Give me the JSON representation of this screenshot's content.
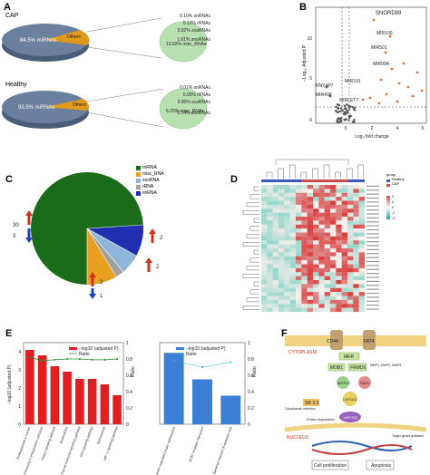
{
  "panels": {
    "A": {
      "label": "A",
      "cap": {
        "title": "CAP",
        "main_pct": "84.5% miRNAs",
        "others_label": "Others",
        "inner_pct": "13.62% misc_RNAs",
        "callouts": [
          "0.10% snRNAs",
          "0.12% rRNAs",
          "0.02% scaRNAs",
          "1.61% snoRNAs"
        ]
      },
      "healthy": {
        "title": "Healthy",
        "main_pct": "93.5% miRNAs",
        "others_label": "Others",
        "inner_pct": "6.25% misc_RNAs",
        "callouts": [
          "0.01% snRNAs",
          "0.05% rRNAs",
          "0.00% scaRNAs",
          "0.14% snoRNAs"
        ]
      }
    },
    "B": {
      "label": "B",
      "ylabel": "−Log₁₀ Adjusted P",
      "xlabel": "Log₂ fold change",
      "yticks": [
        "10",
        "5",
        "0"
      ],
      "xticks": [
        "0",
        "2",
        "4",
        "6"
      ],
      "genes": [
        "SNORD89",
        "MIR100",
        "MIR501",
        "MIR99A",
        "RNY4P7",
        "MIR409",
        "MIR191",
        "MIRLET7"
      ]
    },
    "C": {
      "label": "C",
      "legend": [
        {
          "name": "miRNA",
          "color": "#1a6b1a"
        },
        {
          "name": "misc_RNA",
          "color": "#e8a020"
        },
        {
          "name": "snoRNA",
          "color": "#8fb6d8"
        },
        {
          "name": "rRNA",
          "color": "#a0a0a0"
        },
        {
          "name": "snRNA",
          "color": "#1f2fb0"
        }
      ],
      "counts": {
        "up_main": "30",
        "down_main": "3",
        "up_r1": "2",
        "up_r2": "2",
        "up_b": "2",
        "down_b": "1"
      }
    },
    "D": {
      "label": "D",
      "legend_title": "group",
      "legend_items": [
        {
          "name": "Healthy",
          "color": "#3a57c4"
        },
        {
          "name": "CAP",
          "color": "#d64a4a"
        }
      ],
      "scale_ticks": [
        "4",
        "2",
        "0",
        "-2",
        "-4"
      ]
    },
    "E": {
      "label": "E",
      "left_ylabel": "−log10 (adjusted P)",
      "right_ylabel": "Ratio",
      "legend": [
        "−log10 (adjusted P)",
        "Ratio"
      ],
      "left_categories": [
        "Proteoglycans in cancer",
        "Protein processing in endoplasmic reticulum",
        "Hippo signaling pathway",
        "Endocytosis",
        "Thyroid hormone signaling pathway",
        "p53 signaling pathway",
        "Spliceosome",
        "HIF−1 signaling pathway"
      ],
      "right_categories": [
        "Vasopressin−regulated water reabsorption",
        "ECM−receptor interaction",
        "Bacterial invasion of epithelial cells"
      ],
      "left_yticks": [
        "4",
        "3",
        "2",
        "1",
        "0"
      ],
      "ratio_ticks": [
        "1",
        "0.8",
        "0.6",
        "0.4",
        "0.2",
        "0"
      ]
    },
    "F": {
      "label": "F",
      "labels": {
        "cd44": "CD44",
        "fat4": "FAT4",
        "cyto": "CYTOPLASM",
        "mer": "MER",
        "mm": "MMP1, MMP2, MMP9",
        "ml": "MOB1",
        "fr": "FRMD6",
        "mst": "MST1/2",
        "sav": "SAV1",
        "lats": "LATS1/2",
        "sr": "SR 3-3",
        "yap": "YAP/TAZ",
        "pd": "Protein degradation",
        "cr": "Cytoplasmic retention",
        "nuc": "NUCLEUS",
        "tg": "Target genes activated",
        "cp": "Cell proliferation",
        "ap": "Apoptosis"
      }
    }
  },
  "chart_data": [
    {
      "type": "pie",
      "title": "CAP",
      "categories": [
        "miRNAs",
        "Others"
      ],
      "values": [
        84.5,
        15.5
      ],
      "inner": {
        "categories": [
          "misc_RNAs",
          "snoRNAs",
          "snRNAs",
          "rRNAs",
          "scaRNAs"
        ],
        "values": [
          13.62,
          1.61,
          0.1,
          0.12,
          0.02
        ]
      }
    },
    {
      "type": "pie",
      "title": "Healthy",
      "categories": [
        "miRNAs",
        "Others"
      ],
      "values": [
        93.5,
        6.5
      ],
      "inner": {
        "categories": [
          "misc_RNAs",
          "snoRNAs",
          "snRNAs",
          "rRNAs",
          "scaRNAs"
        ],
        "values": [
          6.25,
          0.14,
          0.01,
          0.05,
          0.0
        ]
      }
    },
    {
      "type": "pie",
      "categories": [
        "miRNA",
        "misc_RNA",
        "snoRNA",
        "rRNA",
        "snRNA"
      ],
      "values": [
        75,
        10,
        5,
        4,
        6
      ]
    },
    {
      "type": "bar",
      "categories": [
        "Proteoglycans in cancer",
        "Protein processing in endoplasmic reticulum",
        "Hippo signaling pathway",
        "Endocytosis",
        "Thyroid hormone signaling pathway",
        "p53 signaling pathway",
        "Spliceosome",
        "HIF−1 signaling pathway"
      ],
      "values": [
        4.1,
        3.8,
        3.2,
        2.9,
        2.5,
        2.5,
        2.2,
        1.6
      ],
      "ratio": [
        0.82,
        0.78,
        0.79,
        0.8,
        0.8,
        0.79,
        0.79,
        0.8
      ],
      "ylim": [
        0,
        4.5
      ]
    },
    {
      "type": "bar",
      "categories": [
        "Vasopressin−regulated water reabsorption",
        "ECM−receptor interaction",
        "Bacterial invasion of epithelial cells"
      ],
      "values": [
        3.5,
        2.2,
        1.4
      ],
      "ratio": [
        0.78,
        0.7,
        0.76
      ],
      "ylim": [
        0,
        4
      ]
    }
  ]
}
